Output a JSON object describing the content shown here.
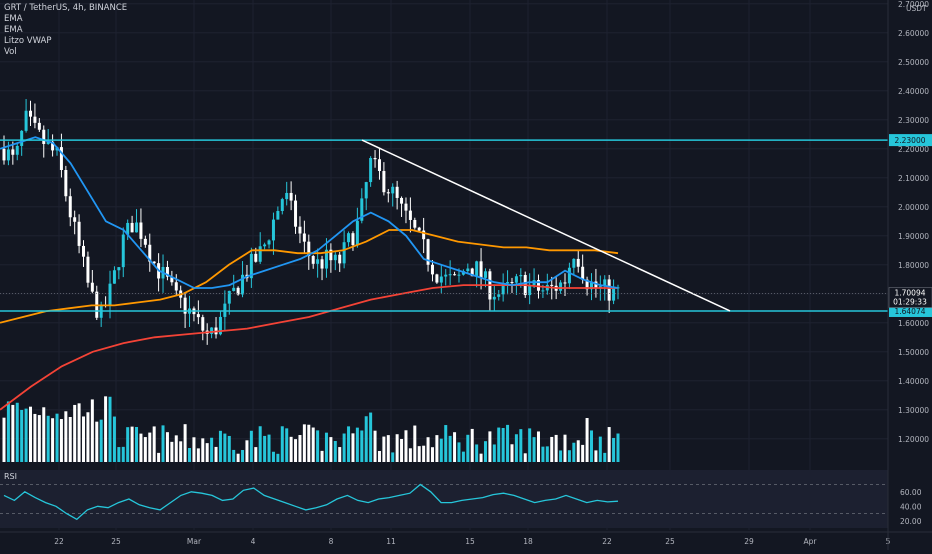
{
  "legend": {
    "title": "GRT / TetherUS, 4h, BINANCE",
    "ind1": "EMA",
    "ind2": "EMA",
    "ind3": "Litzo VWAP",
    "ind4": "Vol"
  },
  "price_axis": {
    "currency": "USDT",
    "current_price": "1.70094",
    "countdown": "01:29:33",
    "resistance_label": "2.23000",
    "support_label": "1.64074"
  },
  "rsi": {
    "label": "RSI",
    "ticks": [
      "60.00",
      "40.00",
      "20.00"
    ]
  },
  "colors": {
    "background": "#131722",
    "up": "#26c6da",
    "down": "#ffffff",
    "ema_fast": "#2196f3",
    "ema_slow": "#ff9800",
    "vwap": "#f44336",
    "level": "#26c6da",
    "trendline": "#ffffff",
    "rsi": "#26c6da"
  },
  "chart_data": {
    "type": "candlestick",
    "symbol": "GRT / TetherUS",
    "interval": "4h",
    "exchange": "BINANCE",
    "ylim": [
      1.12,
      2.85
    ],
    "y_ticks": [
      "2.80000",
      "2.70000",
      "2.60000",
      "2.50000",
      "2.40000",
      "2.30000",
      "2.20000",
      "2.10000",
      "2.00000",
      "1.90000",
      "1.80000",
      "1.70000",
      "1.60000",
      "1.50000",
      "1.40000",
      "1.30000",
      "1.20000"
    ],
    "x_ticks": [
      "22",
      "25",
      "Mar",
      "4",
      "8",
      "11",
      "15",
      "18",
      "22",
      "25",
      "29",
      "Apr",
      "5"
    ],
    "horizontal_levels": [
      2.23,
      1.64074
    ],
    "trendline": {
      "from": [
        "Mar 9",
        2.23
      ],
      "to": [
        "Mar 28",
        1.64074
      ]
    },
    "close_sketch": [
      2.2,
      2.15,
      2.3,
      2.25,
      2.21,
      2.17,
      2.0,
      1.85,
      1.7,
      1.62,
      1.72,
      1.88,
      1.95,
      1.9,
      1.8,
      1.75,
      1.68,
      1.65,
      1.6,
      1.55,
      1.6,
      1.68,
      1.75,
      1.8,
      1.85,
      1.95,
      2.05,
      1.95,
      1.85,
      1.8,
      1.82,
      1.8,
      1.88,
      1.95,
      2.15,
      2.1,
      2.05,
      1.98,
      1.92,
      1.85,
      1.78,
      1.75,
      1.74,
      1.8,
      1.78,
      1.72,
      1.7,
      1.72,
      1.74,
      1.72,
      1.71,
      1.72,
      1.74,
      1.86,
      1.75,
      1.72,
      1.71,
      1.7
    ],
    "ema_fast_sketch": [
      2.2,
      2.22,
      2.24,
      2.22,
      2.15,
      2.05,
      1.95,
      1.92,
      1.85,
      1.78,
      1.75,
      1.72,
      1.72,
      1.73,
      1.76,
      1.78,
      1.8,
      1.82,
      1.85,
      1.9,
      1.95,
      1.98,
      1.95,
      1.9,
      1.82,
      1.8,
      1.78,
      1.76,
      1.74,
      1.73,
      1.74,
      1.74,
      1.78,
      1.75,
      1.73,
      1.72
    ],
    "ema_slow_sketch": [
      1.6,
      1.62,
      1.64,
      1.65,
      1.66,
      1.66,
      1.67,
      1.68,
      1.7,
      1.74,
      1.8,
      1.85,
      1.85,
      1.84,
      1.84,
      1.85,
      1.88,
      1.92,
      1.92,
      1.9,
      1.88,
      1.87,
      1.86,
      1.86,
      1.85,
      1.85,
      1.85,
      1.84
    ],
    "vwap_sketch": [
      1.3,
      1.38,
      1.45,
      1.5,
      1.53,
      1.55,
      1.56,
      1.57,
      1.58,
      1.6,
      1.62,
      1.65,
      1.68,
      1.7,
      1.72,
      1.73,
      1.73,
      1.73,
      1.72,
      1.72,
      1.72
    ],
    "rsi_sketch": [
      55,
      48,
      60,
      52,
      45,
      40,
      30,
      22,
      35,
      40,
      38,
      45,
      50,
      42,
      38,
      35,
      45,
      55,
      60,
      58,
      55,
      48,
      50,
      62,
      65,
      55,
      50,
      45,
      40,
      35,
      38,
      42,
      50,
      55,
      48,
      45,
      50,
      52,
      55,
      58,
      70,
      60,
      45,
      45,
      48,
      50,
      52,
      56,
      58,
      55,
      50,
      45,
      48,
      50,
      55,
      50,
      45,
      48,
      46,
      47
    ]
  }
}
